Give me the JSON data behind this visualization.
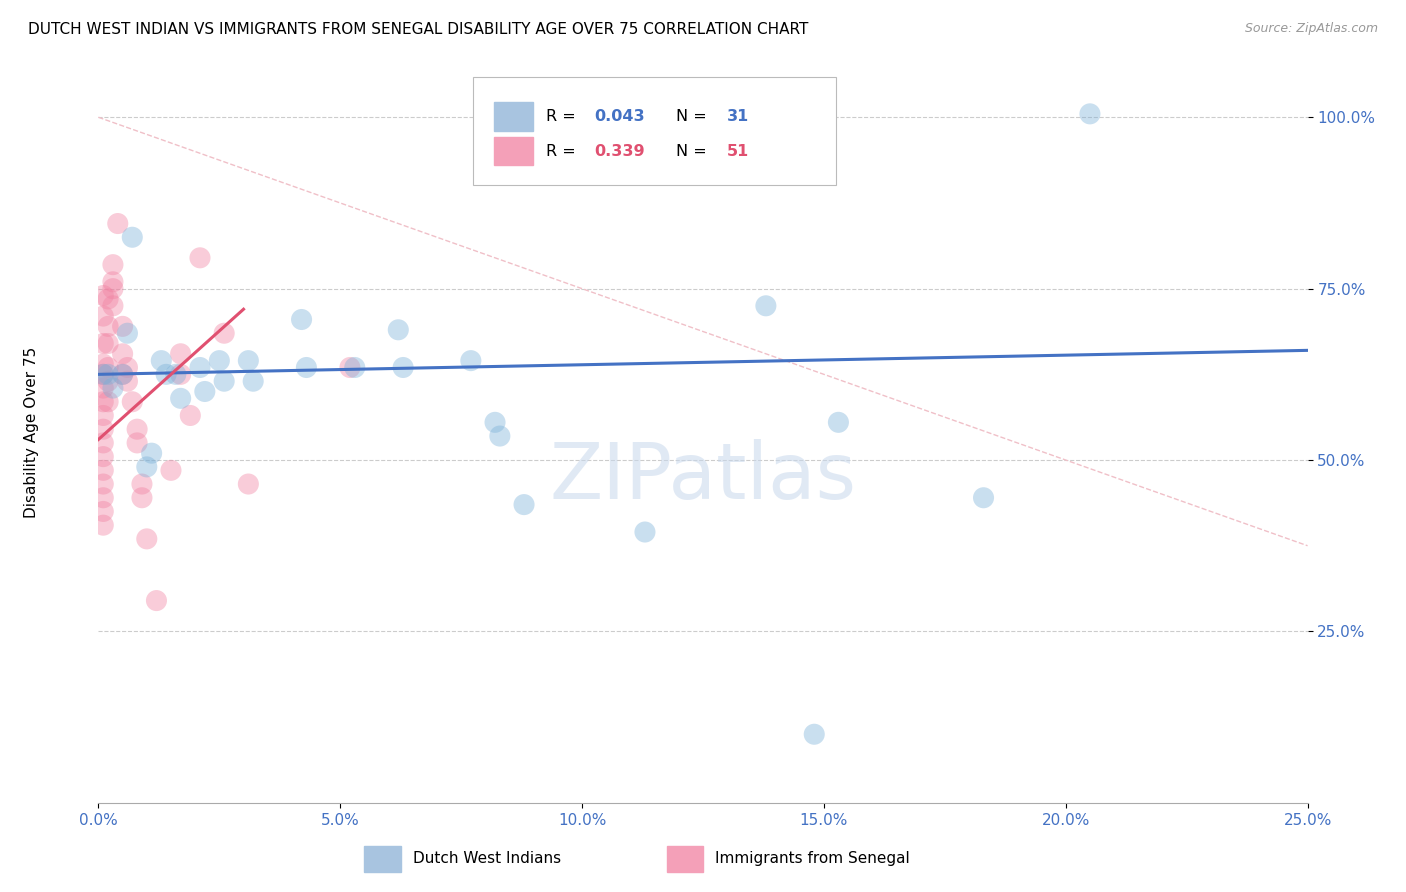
{
  "title": "DUTCH WEST INDIAN VS IMMIGRANTS FROM SENEGAL DISABILITY AGE OVER 75 CORRELATION CHART",
  "source": "Source: ZipAtlas.com",
  "ylabel": "Disability Age Over 75",
  "watermark": "ZIPatlas",
  "xlim": [
    0.0,
    0.25
  ],
  "ylim": [
    0.0,
    1.08
  ],
  "xtick_labels": [
    "0.0%",
    "5.0%",
    "10.0%",
    "15.0%",
    "20.0%",
    "25.0%"
  ],
  "xtick_values": [
    0.0,
    0.05,
    0.1,
    0.15,
    0.2,
    0.25
  ],
  "ytick_labels": [
    "25.0%",
    "50.0%",
    "75.0%",
    "100.0%"
  ],
  "ytick_values": [
    0.25,
    0.5,
    0.75,
    1.0
  ],
  "blue_points": [
    [
      0.001,
      0.625
    ],
    [
      0.002,
      0.625
    ],
    [
      0.003,
      0.605
    ],
    [
      0.005,
      0.625
    ],
    [
      0.006,
      0.685
    ],
    [
      0.007,
      0.825
    ],
    [
      0.01,
      0.49
    ],
    [
      0.011,
      0.51
    ],
    [
      0.013,
      0.645
    ],
    [
      0.014,
      0.625
    ],
    [
      0.016,
      0.625
    ],
    [
      0.017,
      0.59
    ],
    [
      0.021,
      0.635
    ],
    [
      0.022,
      0.6
    ],
    [
      0.025,
      0.645
    ],
    [
      0.026,
      0.615
    ],
    [
      0.031,
      0.645
    ],
    [
      0.032,
      0.615
    ],
    [
      0.042,
      0.705
    ],
    [
      0.043,
      0.635
    ],
    [
      0.053,
      0.635
    ],
    [
      0.062,
      0.69
    ],
    [
      0.063,
      0.635
    ],
    [
      0.077,
      0.645
    ],
    [
      0.082,
      0.555
    ],
    [
      0.083,
      0.535
    ],
    [
      0.088,
      0.435
    ],
    [
      0.113,
      0.395
    ],
    [
      0.138,
      0.725
    ],
    [
      0.153,
      0.555
    ],
    [
      0.183,
      0.445
    ],
    [
      0.148,
      0.1
    ],
    [
      0.205,
      1.005
    ]
  ],
  "pink_points": [
    [
      0.001,
      0.74
    ],
    [
      0.001,
      0.71
    ],
    [
      0.001,
      0.67
    ],
    [
      0.001,
      0.64
    ],
    [
      0.001,
      0.625
    ],
    [
      0.001,
      0.605
    ],
    [
      0.001,
      0.585
    ],
    [
      0.001,
      0.565
    ],
    [
      0.001,
      0.545
    ],
    [
      0.001,
      0.525
    ],
    [
      0.001,
      0.505
    ],
    [
      0.001,
      0.485
    ],
    [
      0.001,
      0.465
    ],
    [
      0.001,
      0.445
    ],
    [
      0.001,
      0.425
    ],
    [
      0.001,
      0.405
    ],
    [
      0.002,
      0.735
    ],
    [
      0.002,
      0.695
    ],
    [
      0.002,
      0.67
    ],
    [
      0.002,
      0.635
    ],
    [
      0.002,
      0.615
    ],
    [
      0.002,
      0.585
    ],
    [
      0.003,
      0.76
    ],
    [
      0.003,
      0.75
    ],
    [
      0.003,
      0.725
    ],
    [
      0.004,
      0.845
    ],
    [
      0.005,
      0.695
    ],
    [
      0.005,
      0.655
    ],
    [
      0.005,
      0.625
    ],
    [
      0.006,
      0.635
    ],
    [
      0.006,
      0.615
    ],
    [
      0.007,
      0.585
    ],
    [
      0.008,
      0.545
    ],
    [
      0.008,
      0.525
    ],
    [
      0.009,
      0.465
    ],
    [
      0.009,
      0.445
    ],
    [
      0.01,
      0.385
    ],
    [
      0.012,
      0.295
    ],
    [
      0.015,
      0.485
    ],
    [
      0.017,
      0.655
    ],
    [
      0.017,
      0.625
    ],
    [
      0.019,
      0.565
    ],
    [
      0.021,
      0.795
    ],
    [
      0.026,
      0.685
    ],
    [
      0.031,
      0.465
    ],
    [
      0.052,
      0.635
    ],
    [
      0.003,
      0.785
    ]
  ],
  "blue_line_x": [
    0.0,
    0.25
  ],
  "blue_line_y": [
    0.625,
    0.66
  ],
  "pink_line_x": [
    0.0,
    0.03
  ],
  "pink_line_y": [
    0.53,
    0.72
  ],
  "diag_line_x": [
    0.0,
    0.25
  ],
  "diag_line_y": [
    1.0,
    0.375
  ],
  "blue_color": "#7ab0d8",
  "pink_color": "#f080a0",
  "blue_line_color": "#4472c4",
  "pink_line_color": "#e05070",
  "diag_color": "#f0c0c8"
}
